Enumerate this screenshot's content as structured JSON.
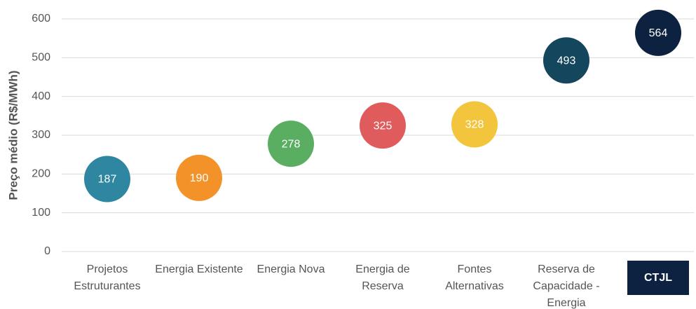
{
  "chart_data": {
    "type": "scatter",
    "y_label": "Preço médio (R$/MWh)",
    "categories": [
      "Projetos Estruturantes",
      "Energia Existente",
      "Energia Nova",
      "Energia de Reserva",
      "Fontes Alternativas",
      "Reserva de Capacidade - Energia",
      "CTJL"
    ],
    "values": [
      187,
      190,
      278,
      325,
      328,
      493,
      564
    ],
    "colors": [
      "#2e86a0",
      "#f4922a",
      "#5aae61",
      "#e05c5c",
      "#f2c53d",
      "#14475e",
      "#0d2240"
    ],
    "highlight_index": 6,
    "ylim": [
      0,
      600
    ],
    "yticks": [
      0,
      100,
      200,
      300,
      400,
      500,
      600
    ],
    "grid": true
  }
}
